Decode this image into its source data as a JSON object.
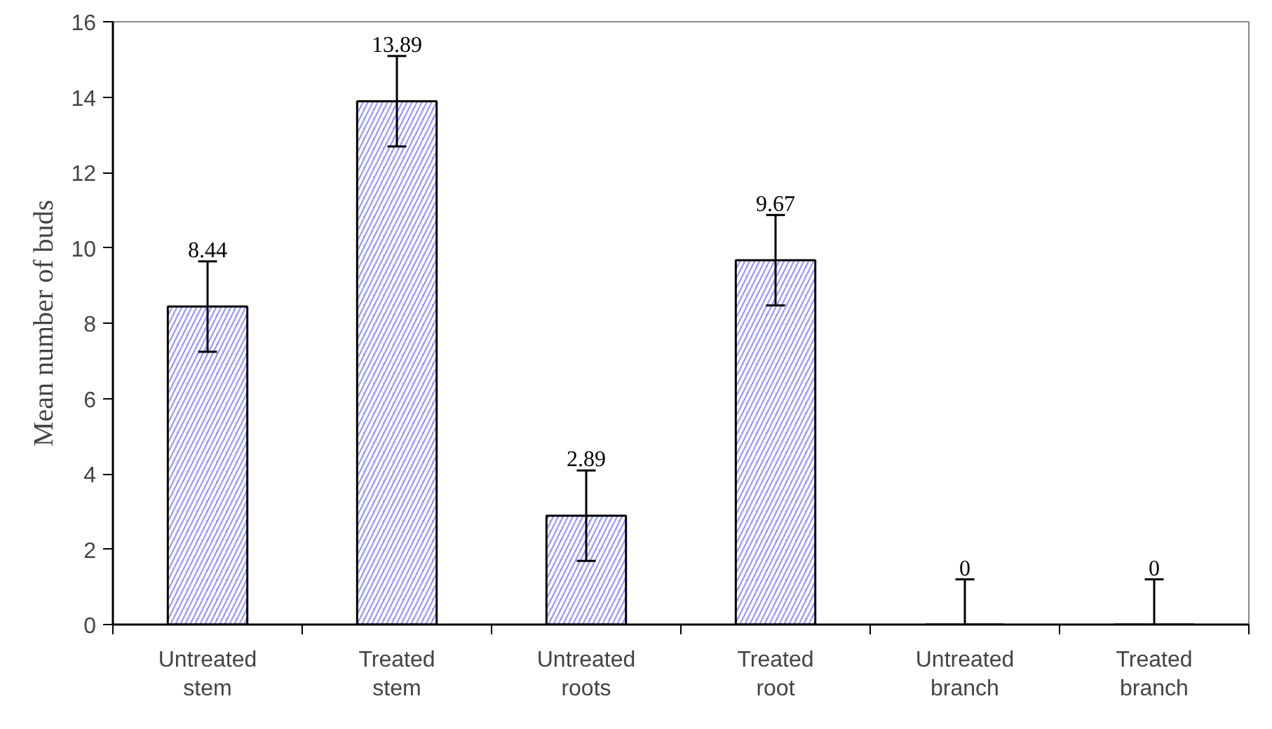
{
  "chart_data": {
    "type": "bar",
    "ylabel": "Mean number of buds",
    "categories": [
      "Untreated\nstem",
      "Treated\nstem",
      "Untreated\nroots",
      "Treated\nroot",
      "Untreated\nbranch",
      "Treated\nbranch"
    ],
    "values": [
      8.44,
      13.89,
      2.89,
      9.67,
      0,
      0
    ],
    "errors": [
      1.2,
      1.2,
      1.2,
      1.2,
      [
        0,
        1.2
      ],
      [
        0,
        1.2
      ]
    ],
    "color": "#9999ff",
    "ylim": [
      0,
      16
    ],
    "yticks": [
      0,
      2,
      4,
      6,
      8,
      10,
      12,
      14,
      16
    ],
    "data_labels": true,
    "grid": false
  }
}
